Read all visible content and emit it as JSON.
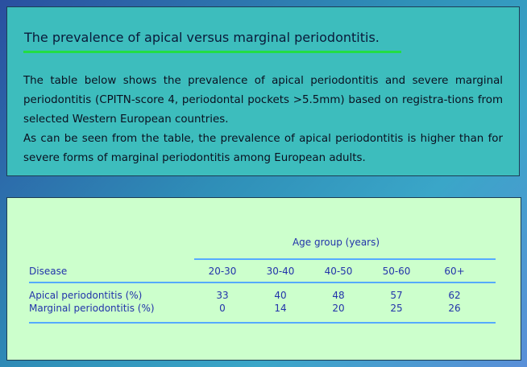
{
  "header": {
    "title": "The prevalence of apical versus marginal periodontitis."
  },
  "paragraphs": [
    "The table below shows the prevalence of apical periodontitis and severe marginal periodontitis (CPITN-score 4, periodontal pockets >5.5mm) based on registra-tions from selected Western European countries.",
    "As can be seen from the table, the prevalence of apical periodontitis is higher than for severe forms of marginal periodontitis among European adults."
  ],
  "table": {
    "caption": "Age group (years)",
    "columns": [
      "Disease",
      "20-30",
      "30-40",
      "40-50",
      "50-60",
      "60+"
    ],
    "rows": [
      [
        "Apical periodontitis (%)",
        33,
        40,
        48,
        57,
        62
      ],
      [
        "Marginal periodontitis (%)",
        0,
        14,
        20,
        25,
        26
      ]
    ]
  }
}
